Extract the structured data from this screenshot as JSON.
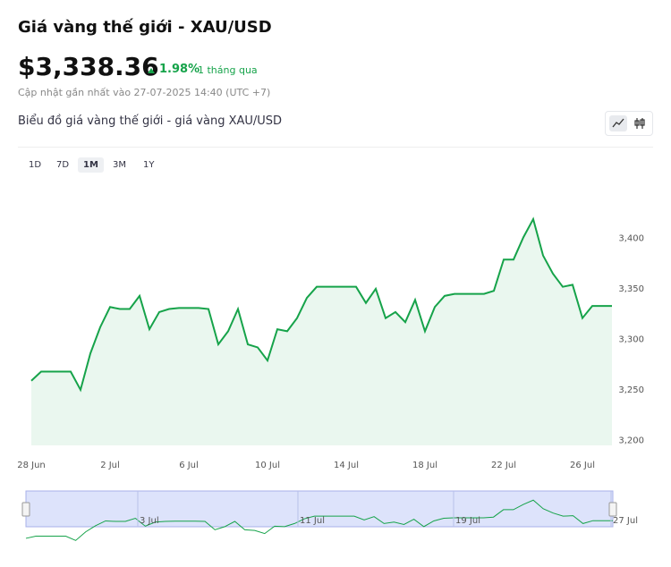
{
  "header": {
    "title": "Giá vàng thế giới - XAU/USD",
    "price": "$3,338.36",
    "change": "1.98%",
    "period": "1 tháng qua",
    "updated": "Cập nhật gần nhất vào 27-07-2025 14:40 (UTC +7)"
  },
  "chart_heading": "Biểu đồ giá vàng thế giới - giá vàng XAU/USD",
  "ranges": [
    "1D",
    "7D",
    "1M",
    "3M",
    "1Y"
  ],
  "active_range": "1M",
  "chart_data": {
    "type": "area",
    "color": "#16a34a",
    "fill": "#eaf7ef",
    "categories": [
      "28 Jun",
      null,
      null,
      null,
      null,
      null,
      null,
      null,
      "2 Jul",
      null,
      null,
      null,
      null,
      null,
      null,
      null,
      "6 Jul",
      null,
      null,
      null,
      null,
      null,
      null,
      null,
      "10 Jul",
      null,
      null,
      null,
      null,
      null,
      null,
      null,
      "14 Jul",
      null,
      null,
      null,
      null,
      null,
      null,
      null,
      "18 Jul",
      null,
      null,
      null,
      null,
      null,
      null,
      null,
      "22 Jul",
      null,
      null,
      null,
      null,
      null,
      null,
      null,
      "26 Jul",
      null,
      null,
      null
    ],
    "values": [
      3259,
      3268,
      3268,
      3268,
      3268,
      3250,
      3286,
      3312,
      3332,
      3330,
      3330,
      3343,
      3310,
      3327,
      3330,
      3331,
      3331,
      3331,
      3330,
      3295,
      3308,
      3330,
      3295,
      3292,
      3279,
      3310,
      3308,
      3321,
      3341,
      3352,
      3352,
      3352,
      3352,
      3352,
      3336,
      3350,
      3321,
      3327,
      3317,
      3339,
      3308,
      3332,
      3343,
      3345,
      3345,
      3345,
      3345,
      3348,
      3379,
      3379,
      3401,
      3419,
      3383,
      3365,
      3352,
      3354,
      3321,
      3333,
      3333,
      3333
    ],
    "ylim": [
      3195,
      3450
    ],
    "yticks": [
      {
        "value": 3200,
        "label": "3,200"
      },
      {
        "value": 3250,
        "label": "3,250"
      },
      {
        "value": 3300,
        "label": "3,300"
      },
      {
        "value": 3350,
        "label": "3,350"
      },
      {
        "value": 3400,
        "label": "3,400"
      }
    ],
    "grid": false
  },
  "navigator": {
    "labels": [
      "3 Jul",
      "11 Jul",
      "19 Jul",
      "27 Jul"
    ]
  }
}
